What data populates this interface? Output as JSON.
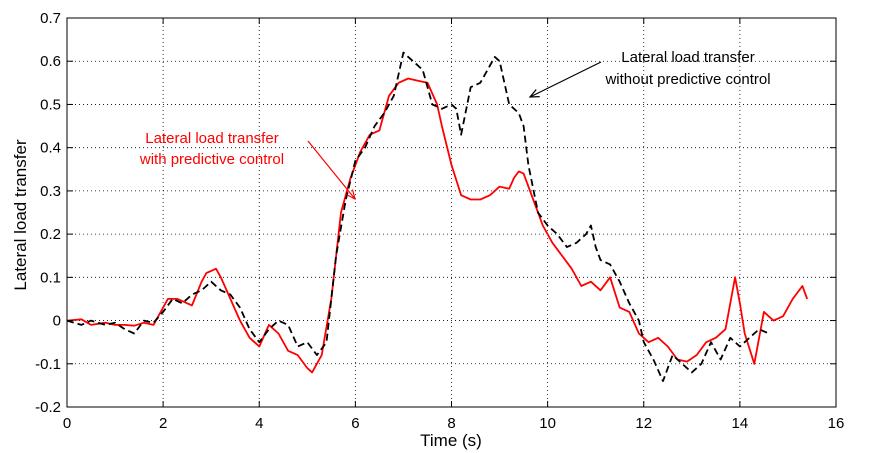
{
  "chart_data": {
    "type": "line",
    "title": "",
    "xlabel": "Time (s)",
    "ylabel": "Lateral load transfer",
    "xlim": [
      0,
      16
    ],
    "ylim": [
      -0.2,
      0.7
    ],
    "xticks": [
      0,
      2,
      4,
      6,
      8,
      10,
      12,
      14,
      16
    ],
    "yticks": [
      -0.2,
      -0.1,
      0,
      0.1,
      0.2,
      0.3,
      0.4,
      0.5,
      0.6,
      0.7
    ],
    "xtick_labels": [
      "0",
      "2",
      "4",
      "6",
      "8",
      "10",
      "12",
      "14",
      "16"
    ],
    "ytick_labels": [
      "-0.2",
      "-0.1",
      "0",
      "0.1",
      "0.2",
      "0.3",
      "0.4",
      "0.5",
      "0.6",
      "0.7"
    ],
    "grid": true,
    "series": [
      {
        "color": "#ff0000",
        "style": "solid",
        "x": [
          0,
          0.3,
          0.5,
          0.8,
          1.0,
          1.2,
          1.4,
          1.6,
          1.8,
          2.0,
          2.1,
          2.3,
          2.5,
          2.6,
          2.8,
          2.9,
          3.0,
          3.1,
          3.2,
          3.4,
          3.6,
          3.8,
          4.0,
          4.2,
          4.4,
          4.6,
          4.8,
          5.0,
          5.1,
          5.3,
          5.5,
          5.7,
          5.9,
          6.1,
          6.3,
          6.5,
          6.7,
          6.9,
          7.1,
          7.3,
          7.5,
          7.7,
          7.8,
          8.0,
          8.2,
          8.4,
          8.6,
          8.8,
          9.0,
          9.2,
          9.3,
          9.4,
          9.5,
          9.7,
          9.9,
          10.1,
          10.3,
          10.5,
          10.7,
          10.9,
          11.1,
          11.3,
          11.5,
          11.7,
          11.9,
          12.1,
          12.3,
          12.5,
          12.7,
          12.9,
          13.1,
          13.3,
          13.5,
          13.7,
          13.9,
          14.0,
          14.1,
          14.3,
          14.5,
          14.7,
          14.9,
          15.1,
          15.3,
          15.4
        ],
        "y": [
          0,
          0.003,
          -0.01,
          -0.005,
          -0.01,
          -0.01,
          -0.012,
          -0.005,
          -0.01,
          0.03,
          0.05,
          0.05,
          0.04,
          0.035,
          0.09,
          0.11,
          0.115,
          0.12,
          0.1,
          0.05,
          0.0,
          -0.04,
          -0.06,
          -0.01,
          -0.03,
          -0.07,
          -0.08,
          -0.11,
          -0.12,
          -0.08,
          0.05,
          0.25,
          0.33,
          0.39,
          0.43,
          0.44,
          0.52,
          0.55,
          0.56,
          0.555,
          0.55,
          0.5,
          0.45,
          0.36,
          0.29,
          0.28,
          0.28,
          0.29,
          0.31,
          0.305,
          0.33,
          0.345,
          0.34,
          0.28,
          0.22,
          0.18,
          0.15,
          0.12,
          0.08,
          0.09,
          0.07,
          0.1,
          0.03,
          0.02,
          -0.03,
          -0.05,
          -0.04,
          -0.06,
          -0.09,
          -0.095,
          -0.08,
          -0.05,
          -0.04,
          -0.02,
          0.1,
          0.04,
          -0.03,
          -0.1,
          0.02,
          0.0,
          0.01,
          0.05,
          0.08,
          0.05
        ]
      },
      {
        "color": "#000000",
        "style": "dashed",
        "x": [
          0,
          0.3,
          0.5,
          0.8,
          1.0,
          1.2,
          1.4,
          1.6,
          1.8,
          2.0,
          2.2,
          2.4,
          2.6,
          2.8,
          3.0,
          3.2,
          3.4,
          3.6,
          3.8,
          4.0,
          4.2,
          4.4,
          4.6,
          4.8,
          5.0,
          5.2,
          5.4,
          5.6,
          5.8,
          6.0,
          6.2,
          6.4,
          6.6,
          6.8,
          7.0,
          7.1,
          7.2,
          7.4,
          7.6,
          7.8,
          8.0,
          8.1,
          8.2,
          8.4,
          8.6,
          8.8,
          8.9,
          9.0,
          9.2,
          9.4,
          9.5,
          9.6,
          9.8,
          10.0,
          10.2,
          10.4,
          10.6,
          10.8,
          10.9,
          11.0,
          11.1,
          11.3,
          11.5,
          11.7,
          11.9,
          12.0,
          12.2,
          12.4,
          12.6,
          12.8,
          13.0,
          13.2,
          13.4,
          13.6,
          13.8,
          14.0,
          14.2,
          14.4,
          14.6
        ],
        "y": [
          0,
          -0.01,
          0.0,
          -0.01,
          -0.005,
          -0.02,
          -0.03,
          0.0,
          -0.005,
          0.02,
          0.05,
          0.04,
          0.06,
          0.07,
          0.09,
          0.07,
          0.06,
          0.03,
          -0.02,
          -0.05,
          -0.02,
          0.0,
          -0.01,
          -0.06,
          -0.05,
          -0.08,
          -0.05,
          0.15,
          0.28,
          0.37,
          0.4,
          0.45,
          0.48,
          0.52,
          0.62,
          0.61,
          0.6,
          0.58,
          0.5,
          0.49,
          0.5,
          0.49,
          0.43,
          0.54,
          0.55,
          0.59,
          0.61,
          0.6,
          0.5,
          0.48,
          0.45,
          0.36,
          0.25,
          0.22,
          0.2,
          0.17,
          0.18,
          0.2,
          0.22,
          0.17,
          0.14,
          0.13,
          0.09,
          0.04,
          0.0,
          -0.05,
          -0.09,
          -0.14,
          -0.08,
          -0.1,
          -0.12,
          -0.1,
          -0.05,
          -0.09,
          -0.04,
          -0.06,
          -0.04,
          -0.02,
          -0.03
        ]
      }
    ],
    "annotations": [
      {
        "lines": [
          "Lateral load transfer",
          "with predictive control"
        ],
        "color": "#ff0000"
      },
      {
        "lines": [
          "Lateral load transfer",
          "without predictive control"
        ],
        "color": "#000000"
      }
    ]
  }
}
